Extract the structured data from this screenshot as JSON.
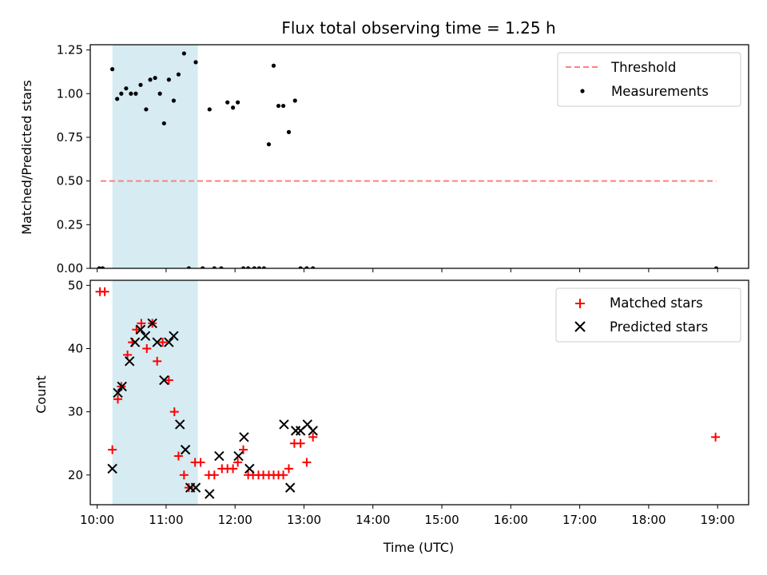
{
  "chart_data": {
    "title": "Flux total observing time = 1.25 h",
    "xlabel": "Time (UTC)",
    "x_axis": {
      "unit": "hours (UTC)",
      "xlim": [
        9.9,
        19.45
      ],
      "tick_values": [
        10,
        11,
        12,
        13,
        14,
        15,
        16,
        17,
        18,
        19
      ],
      "tick_labels": [
        "10:00",
        "11:00",
        "12:00",
        "13:00",
        "14:00",
        "15:00",
        "16:00",
        "17:00",
        "18:00",
        "19:00"
      ]
    },
    "shaded_span": {
      "x0": 10.22,
      "x1": 11.46,
      "color": "#add8e6"
    },
    "panels": [
      {
        "type": "scatter",
        "ylabel": "Matched/Predicted stars",
        "ylim": [
          0,
          1.28
        ],
        "yticks": [
          "0.00",
          "0.25",
          "0.50",
          "0.75",
          "1.00",
          "1.25"
        ],
        "series": [
          {
            "name": "Threshold",
            "kind": "line",
            "style": "dashed",
            "color": "#ff7f7f",
            "x": [
              10.05,
              18.98
            ],
            "y": [
              0.5,
              0.5
            ]
          },
          {
            "name": "Measurements",
            "kind": "points",
            "color": "#000000",
            "x": [
              10.03,
              10.08,
              10.22,
              10.29,
              10.35,
              10.42,
              10.49,
              10.56,
              10.63,
              10.71,
              10.77,
              10.84,
              10.91,
              10.97,
              11.04,
              11.11,
              11.18,
              11.26,
              11.33,
              11.43,
              11.53,
              11.63,
              11.7,
              11.8,
              11.89,
              11.97,
              12.04,
              12.12,
              12.19,
              12.28,
              12.35,
              12.42,
              12.49,
              12.56,
              12.63,
              12.7,
              12.78,
              12.87,
              12.95,
              13.04,
              13.13,
              18.98
            ],
            "y": [
              0.0,
              0.0,
              1.14,
              0.97,
              1.0,
              1.03,
              1.0,
              1.0,
              1.05,
              0.91,
              1.08,
              1.09,
              1.0,
              0.83,
              1.08,
              0.96,
              1.11,
              1.23,
              0.0,
              1.18,
              0.0,
              0.91,
              0.0,
              0.0,
              0.95,
              0.92,
              0.95,
              0.0,
              0.0,
              0.0,
              0.0,
              0.0,
              0.71,
              1.16,
              0.93,
              0.93,
              0.78,
              0.96,
              0.0,
              0.0,
              0.0,
              0.0
            ]
          }
        ]
      },
      {
        "type": "scatter",
        "ylabel": "Count",
        "ylim": [
          15.3,
          50.8
        ],
        "yticks": [
          "20",
          "30",
          "40",
          "50"
        ],
        "series": [
          {
            "name": "Matched stars",
            "marker": "plus",
            "color": "#ff0000",
            "x": [
              10.04,
              10.11,
              10.22,
              10.3,
              10.35,
              10.44,
              10.51,
              10.57,
              10.64,
              10.72,
              10.8,
              10.87,
              10.95,
              11.04,
              11.12,
              11.18,
              11.26,
              11.33,
              11.42,
              11.5,
              11.62,
              11.7,
              11.81,
              11.89,
              11.97,
              12.04,
              12.12,
              12.19,
              12.26,
              12.34,
              12.41,
              12.49,
              12.56,
              12.63,
              12.7,
              12.78,
              12.86,
              12.95,
              13.04,
              13.13,
              18.97
            ],
            "y": [
              49,
              49,
              24,
              32,
              34,
              39,
              41,
              43,
              44,
              40,
              44,
              38,
              41,
              35,
              30,
              23,
              20,
              18,
              22,
              22,
              20,
              20,
              21,
              21,
              21,
              22,
              24,
              20,
              20,
              20,
              20,
              20,
              20,
              20,
              20,
              21,
              25,
              25,
              22,
              26,
              26
            ]
          },
          {
            "name": "Predicted stars",
            "marker": "x",
            "color": "#000000",
            "x": [
              10.22,
              10.3,
              10.36,
              10.47,
              10.55,
              10.63,
              10.7,
              10.8,
              10.87,
              10.97,
              11.04,
              11.11,
              11.2,
              11.28,
              11.35,
              11.43,
              11.63,
              11.77,
              12.05,
              12.13,
              12.21,
              12.71,
              12.8,
              12.88,
              12.95,
              13.05,
              13.13
            ],
            "y": [
              21,
              33,
              34,
              38,
              41,
              43,
              42,
              44,
              41,
              35,
              41,
              42,
              28,
              24,
              18,
              18,
              17,
              23,
              23,
              26,
              21,
              28,
              18,
              27,
              27,
              28,
              27
            ]
          }
        ]
      }
    ]
  }
}
